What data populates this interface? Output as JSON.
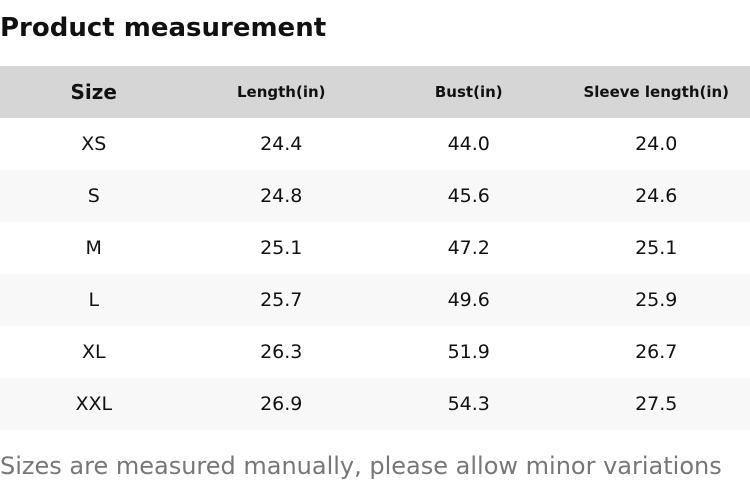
{
  "header": {
    "title": "Product measurement"
  },
  "table": {
    "columns": [
      "Size",
      "Length(in)",
      "Bust(in)",
      "Sleeve length(in)"
    ],
    "rows": [
      [
        "XS",
        "24.4",
        "44.0",
        "24.0"
      ],
      [
        "S",
        "24.8",
        "45.6",
        "24.6"
      ],
      [
        "M",
        "25.1",
        "47.2",
        "25.1"
      ],
      [
        "L",
        "25.7",
        "49.6",
        "25.9"
      ],
      [
        "XL",
        "26.3",
        "51.9",
        "26.7"
      ],
      [
        "XXL",
        "26.9",
        "54.3",
        "27.5"
      ]
    ]
  },
  "note": "Sizes are measured manually, please allow minor variations"
}
